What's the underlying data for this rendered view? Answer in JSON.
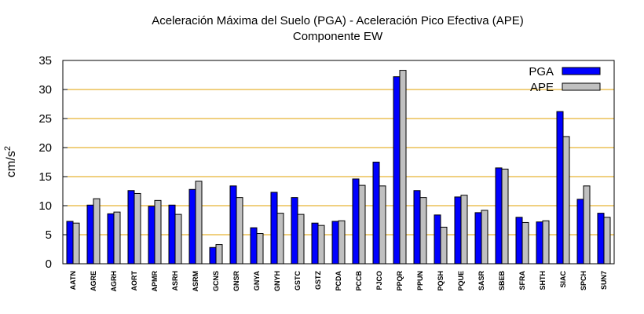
{
  "chart_data": {
    "type": "bar",
    "title_line1": "Aceleración Máxima del Suelo (PGA) -  Aceleración Pico Efectiva (APE)",
    "title_line2": "Componente EW",
    "ylabel_base": "cm/s",
    "ylabel_exp": "2",
    "xlabel": "",
    "ylim": [
      0,
      35
    ],
    "yticks": [
      0,
      5,
      10,
      15,
      20,
      25,
      30,
      35
    ],
    "grid": true,
    "legend_position": "top-right",
    "categories": [
      "AATN",
      "AGRE",
      "AGRH",
      "AORT",
      "APMR",
      "ASRH",
      "ASRM",
      "GCNS",
      "GNSR",
      "GNYA",
      "GNYH",
      "GSTC",
      "GSTZ",
      "PCDA",
      "PCCB",
      "PJCO",
      "PPQR",
      "PPUN",
      "PQSH",
      "PQUE",
      "SASR",
      "SBEB",
      "SFRA",
      "SHTH",
      "SIAC",
      "SPCH",
      "SUN7"
    ],
    "series": [
      {
        "name": "PGA",
        "color": "#0000ff",
        "values": [
          7.3,
          10.1,
          8.6,
          12.6,
          9.9,
          10.1,
          12.8,
          2.8,
          13.4,
          6.2,
          12.3,
          11.4,
          7.0,
          7.3,
          14.6,
          17.5,
          32.2,
          12.6,
          8.4,
          11.5,
          8.8,
          16.5,
          8.0,
          7.2,
          26.2,
          11.1,
          8.7
        ]
      },
      {
        "name": "APE",
        "color": "#c0c0c0",
        "values": [
          7.0,
          11.2,
          8.9,
          12.1,
          10.9,
          8.5,
          14.2,
          3.3,
          11.4,
          5.2,
          8.7,
          8.5,
          6.6,
          7.4,
          13.5,
          13.4,
          33.3,
          11.4,
          6.3,
          11.8,
          9.2,
          16.3,
          7.1,
          7.4,
          21.9,
          13.4,
          8.0
        ]
      }
    ]
  }
}
